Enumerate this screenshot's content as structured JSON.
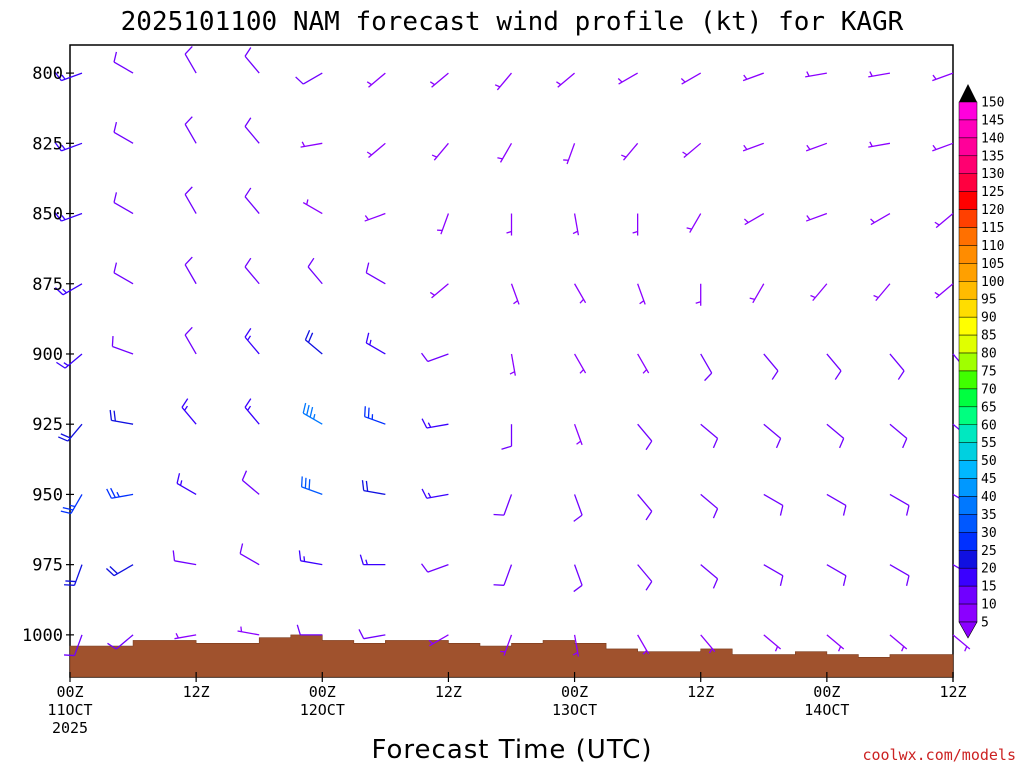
{
  "chart_data": {
    "type": "wind-barb-profile",
    "title": "2025101100 NAM forecast wind profile (kt) for KAGR",
    "xlabel": "Forecast Time (UTC)",
    "credit": "coolwx.com/models",
    "x_ticks": [
      {
        "hour": 0,
        "lines": [
          "00Z",
          "11OCT",
          "2025"
        ]
      },
      {
        "hour": 12,
        "lines": [
          "12Z"
        ]
      },
      {
        "hour": 24,
        "lines": [
          "00Z",
          "12OCT"
        ]
      },
      {
        "hour": 36,
        "lines": [
          "12Z"
        ]
      },
      {
        "hour": 48,
        "lines": [
          "00Z",
          "13OCT"
        ]
      },
      {
        "hour": 60,
        "lines": [
          "12Z"
        ]
      },
      {
        "hour": 72,
        "lines": [
          "00Z",
          "14OCT"
        ]
      },
      {
        "hour": 84,
        "lines": [
          "12Z"
        ]
      }
    ],
    "xlim": [
      0,
      84
    ],
    "y_ticks": [
      "800",
      "825",
      "850",
      "875",
      "900",
      "925",
      "950",
      "975",
      "1000"
    ],
    "ylim": [
      790,
      1015
    ],
    "y_unit": "hPa",
    "colorbar": {
      "levels": [
        "5",
        "10",
        "15",
        "20",
        "25",
        "30",
        "35",
        "40",
        "45",
        "50",
        "55",
        "60",
        "65",
        "70",
        "75",
        "80",
        "85",
        "90",
        "95",
        "100",
        "105",
        "110",
        "115",
        "120",
        "125",
        "130",
        "135",
        "140",
        "145",
        "150"
      ],
      "colors": [
        "#8b00ff",
        "#7000ff",
        "#3a00ff",
        "#1010e0",
        "#0030ff",
        "#0058ff",
        "#0078ff",
        "#0098ff",
        "#00b8ff",
        "#00d0e0",
        "#00e8c0",
        "#00ff80",
        "#00ff40",
        "#40ff00",
        "#a0ff00",
        "#e0ff00",
        "#ffff00",
        "#ffdd00",
        "#ffbb00",
        "#ffa000",
        "#ff8c00",
        "#ff7000",
        "#ff4000",
        "#ff0000",
        "#ff0040",
        "#ff0070",
        "#ff0099",
        "#ff00bb",
        "#ff00dd",
        "#ff00ff"
      ]
    },
    "surface": {
      "color": "#a0522d",
      "hours": [
        0,
        3,
        6,
        9,
        12,
        15,
        18,
        21,
        24,
        27,
        30,
        33,
        36,
        39,
        42,
        45,
        48,
        51,
        54,
        57,
        60,
        63,
        66,
        69,
        72,
        75,
        78,
        81,
        84
      ],
      "pressure_hpa": [
        1004,
        1004,
        1002,
        1002,
        1003,
        1003,
        1001,
        1000,
        1002,
        1003,
        1002,
        1002,
        1003,
        1004,
        1003,
        1002,
        1003,
        1005,
        1006,
        1006,
        1005,
        1007,
        1007,
        1006,
        1007,
        1008,
        1007,
        1007,
        1008
      ]
    },
    "wind_barbs_kt": {
      "hours": [
        0,
        6,
        12,
        18,
        24,
        30,
        36,
        42,
        48,
        54,
        60,
        66,
        72,
        78,
        84
      ],
      "levels_hpa": [
        800,
        825,
        850,
        875,
        900,
        925,
        950,
        975,
        1000
      ],
      "speed": [
        [
          15,
          10,
          10,
          10,
          10,
          5,
          5,
          5,
          5,
          5,
          5,
          5,
          5,
          5,
          5
        ],
        [
          15,
          10,
          10,
          10,
          5,
          5,
          5,
          5,
          5,
          5,
          5,
          5,
          5,
          5,
          5
        ],
        [
          15,
          10,
          10,
          10,
          5,
          5,
          5,
          5,
          5,
          5,
          5,
          5,
          5,
          5,
          5
        ],
        [
          15,
          10,
          10,
          10,
          10,
          10,
          5,
          5,
          5,
          5,
          5,
          5,
          5,
          5,
          5
        ],
        [
          15,
          10,
          10,
          15,
          20,
          15,
          10,
          5,
          5,
          5,
          10,
          10,
          10,
          10,
          10
        ],
        [
          20,
          20,
          15,
          15,
          35,
          25,
          15,
          10,
          5,
          10,
          10,
          10,
          10,
          10,
          10
        ],
        [
          25,
          25,
          15,
          10,
          30,
          20,
          15,
          10,
          10,
          10,
          10,
          10,
          10,
          10,
          10
        ],
        [
          20,
          20,
          10,
          10,
          15,
          15,
          10,
          10,
          10,
          10,
          10,
          10,
          10,
          10,
          10
        ],
        [
          10,
          10,
          5,
          5,
          10,
          10,
          5,
          5,
          5,
          5,
          5,
          5,
          5,
          5,
          5
        ]
      ],
      "direction": [
        [
          250,
          300,
          330,
          320,
          240,
          230,
          230,
          220,
          230,
          240,
          240,
          250,
          260,
          260,
          250
        ],
        [
          250,
          300,
          330,
          320,
          260,
          230,
          220,
          210,
          200,
          220,
          230,
          250,
          250,
          260,
          250
        ],
        [
          250,
          300,
          330,
          320,
          300,
          250,
          200,
          180,
          170,
          180,
          210,
          240,
          250,
          240,
          230
        ],
        [
          240,
          300,
          330,
          320,
          320,
          300,
          230,
          160,
          150,
          160,
          180,
          210,
          220,
          220,
          230
        ],
        [
          230,
          290,
          330,
          320,
          310,
          300,
          250,
          170,
          150,
          150,
          150,
          140,
          140,
          140,
          140
        ],
        [
          220,
          280,
          320,
          320,
          300,
          290,
          260,
          180,
          160,
          140,
          130,
          130,
          130,
          130,
          130
        ],
        [
          210,
          260,
          300,
          310,
          290,
          280,
          260,
          200,
          160,
          140,
          130,
          120,
          120,
          120,
          120
        ],
        [
          200,
          240,
          280,
          300,
          280,
          270,
          250,
          200,
          160,
          140,
          130,
          120,
          120,
          120,
          120
        ],
        [
          200,
          230,
          260,
          280,
          270,
          260,
          240,
          200,
          170,
          150,
          140,
          130,
          130,
          130,
          130
        ]
      ]
    }
  }
}
